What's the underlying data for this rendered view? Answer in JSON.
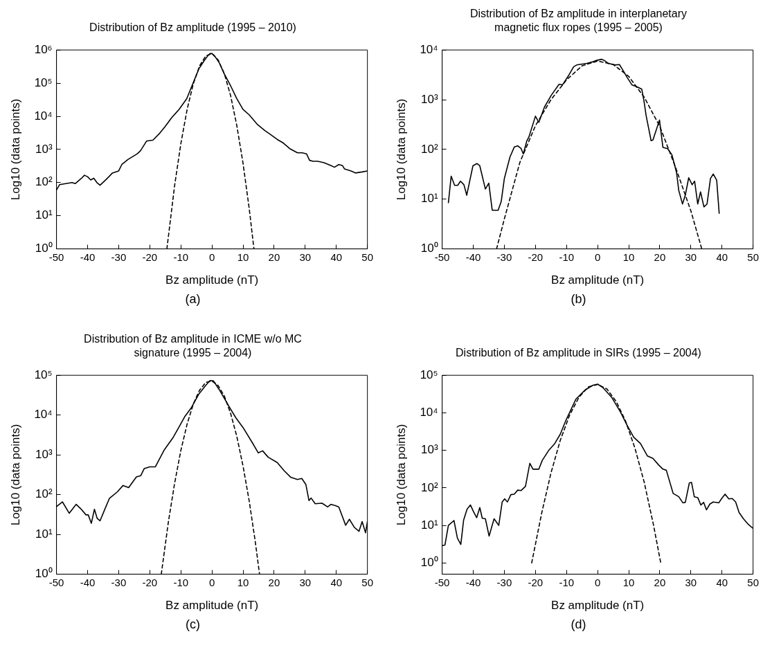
{
  "chart_data": [
    {
      "type": "line",
      "title": "Distribution of Bz amplitude (1995 – 2010)",
      "xlabel": "Bz amplitude (nT)",
      "ylabel": "Log10 (data points)",
      "annotations": [
        "(a)"
      ],
      "log": "y",
      "grid": false,
      "legend": false,
      "xlim": [
        -50,
        50
      ],
      "xticks": [
        -50,
        -40,
        -30,
        -20,
        -10,
        0,
        10,
        20,
        30,
        40,
        50
      ],
      "ylim": [
        1,
        1000000
      ],
      "yticks": [
        {
          "value": 1,
          "label": "10⁰"
        },
        {
          "value": 10,
          "label": "10¹"
        },
        {
          "value": 100,
          "label": "10²"
        },
        {
          "value": 1000,
          "label": "10³"
        },
        {
          "value": 10000,
          "label": "10⁴"
        },
        {
          "value": 100000,
          "label": "10⁵"
        },
        {
          "value": 1000000,
          "label": "10⁶"
        }
      ],
      "series": [
        {
          "color": "#000000",
          "line_style": "solid",
          "x": [
            -50,
            -49,
            -47,
            -45,
            -44,
            -42,
            -41,
            -40,
            -39,
            -38,
            -37,
            -36,
            -34,
            -32,
            -30,
            -29,
            -27,
            -24,
            -23,
            -21,
            -19,
            -17,
            -15,
            -13,
            -10.6,
            -8.1,
            -6.3,
            -4.2,
            -2.4,
            -1.3,
            -0.6,
            0,
            0.9,
            2.3,
            4,
            6,
            8,
            10,
            12,
            14.5,
            17,
            19,
            21,
            23,
            25,
            27.5,
            29,
            30.4,
            31.4,
            32.5,
            34,
            36,
            38.3,
            39.4,
            40.8,
            42,
            42.6,
            44.7,
            46.2,
            48.3,
            50
          ],
          "values": [
            60,
            87,
            93,
            100,
            93,
            134,
            167,
            150,
            120,
            135,
            100,
            83,
            125,
            195,
            225,
            350,
            500,
            740,
            910,
            1800,
            1900,
            2950,
            5000,
            9000,
            16000,
            34000,
            89000,
            270000,
            490000,
            675000,
            780000,
            780000,
            650000,
            420000,
            186000,
            83000,
            34000,
            16000,
            11000,
            5800,
            3700,
            2750,
            2000,
            1550,
            1060,
            790,
            790,
            740,
            470,
            440,
            440,
            400,
            325,
            290,
            350,
            325,
            260,
            225,
            195,
            210,
            225
          ]
        },
        {
          "color": "#000000",
          "line_style": "dashed",
          "x": [
            -14.5,
            -12,
            -10,
            -8,
            -6,
            -4,
            -2,
            0,
            2,
            4,
            6,
            8,
            10,
            12,
            13.5
          ],
          "values": [
            1,
            83,
            1500,
            16000,
            95000,
            330000,
            660000,
            780000,
            500000,
            190000,
            42000,
            5200,
            380,
            16,
            1
          ]
        }
      ]
    },
    {
      "type": "line",
      "title": "Distribution of Bz amplitude in interplanetary magnetic flux ropes (1995 – 2005)",
      "xlabel": "Bz amplitude (nT)",
      "ylabel": "Log10 (data points)",
      "annotations": [
        "(b)"
      ],
      "log": "y",
      "grid": false,
      "legend": false,
      "xlim": [
        -50,
        50
      ],
      "xticks": [
        -50,
        -40,
        -30,
        -20,
        -10,
        0,
        10,
        20,
        30,
        40,
        50
      ],
      "ylim": [
        1,
        10000
      ],
      "yticks": [
        {
          "value": 1,
          "label": "10⁰"
        },
        {
          "value": 10,
          "label": "10¹"
        },
        {
          "value": 100,
          "label": "10²"
        },
        {
          "value": 1000,
          "label": "10³"
        },
        {
          "value": 10000,
          "label": "10⁴"
        }
      ],
      "series": [
        {
          "color": "#000000",
          "line_style": "solid",
          "x": [
            -48,
            -47.1,
            -46,
            -45,
            -44.1,
            -43,
            -42.1,
            -40.1,
            -38.8,
            -37.9,
            -36.1,
            -35,
            -33.9,
            -32,
            -31,
            -30,
            -28.2,
            -26.8,
            -25.7,
            -24.6,
            -23.9,
            -22.8,
            -22.1,
            -20,
            -18.9,
            -17.1,
            -14.9,
            -12.4,
            -11.3,
            -9.5,
            -7.7,
            -6.7,
            -4.5,
            -3.4,
            -1.6,
            -0.2,
            1.3,
            2.3,
            3.4,
            5.6,
            7,
            8.1,
            9.5,
            11,
            12.8,
            14.2,
            14.9,
            15.6,
            17.2,
            17.8,
            19.9,
            21,
            22.5,
            23.9,
            25.4,
            26.1,
            27.3,
            28.2,
            29.3,
            30.4,
            31.2,
            32.2,
            33.1,
            34.2,
            35.2,
            36.3,
            37.2,
            38.3,
            39.1
          ],
          "values": [
            8.5,
            29,
            19,
            19,
            23,
            19.5,
            12,
            47,
            52,
            47,
            16,
            21,
            6,
            6,
            9,
            26,
            70,
            112,
            118,
            104,
            81,
            147,
            178,
            466,
            350,
            710,
            1230,
            2040,
            1990,
            2950,
            4600,
            5000,
            5250,
            5400,
            5770,
            6200,
            6500,
            6060,
            5400,
            5000,
            5100,
            3950,
            2800,
            2000,
            1800,
            1630,
            950,
            480,
            150,
            155,
            390,
            110,
            104,
            78,
            34,
            15,
            8,
            12,
            27,
            19.5,
            23,
            8,
            14,
            7,
            8,
            26,
            32,
            24,
            5.2
          ]
        },
        {
          "color": "#000000",
          "line_style": "dashed",
          "x": [
            -32.5,
            -30,
            -25,
            -20,
            -15,
            -10,
            -5,
            0,
            5,
            10,
            15,
            20,
            25,
            30,
            33.5
          ],
          "values": [
            1,
            4,
            55,
            300,
            1000,
            2500,
            4800,
            6000,
            5100,
            2950,
            1120,
            290,
            45,
            5.8,
            1
          ]
        }
      ]
    },
    {
      "type": "line",
      "title": "Distribution of Bz amplitude in ICME w/o MC signature (1995 – 2004)",
      "xlabel": "Bz amplitude (nT)",
      "ylabel": "Log10 (data points)",
      "annotations": [
        "(c)"
      ],
      "log": "y",
      "grid": false,
      "legend": false,
      "xlim": [
        -50,
        50
      ],
      "xticks": [
        -50,
        -40,
        -30,
        -20,
        -10,
        0,
        10,
        20,
        30,
        40,
        50
      ],
      "ylim": [
        1,
        100000
      ],
      "yticks": [
        {
          "value": 1,
          "label": "10⁰"
        },
        {
          "value": 10,
          "label": "10¹"
        },
        {
          "value": 100,
          "label": "10²"
        },
        {
          "value": 1000,
          "label": "10³"
        },
        {
          "value": 10000,
          "label": "10⁴"
        },
        {
          "value": 100000,
          "label": "10⁵"
        }
      ],
      "series": [
        {
          "color": "#000000",
          "line_style": "solid",
          "x": [
            -50,
            -48.1,
            -45.9,
            -43.7,
            -42.3,
            -40.5,
            -39.8,
            -38.8,
            -37.8,
            -36.9,
            -36,
            -34.4,
            -33,
            -30.4,
            -28.6,
            -26.8,
            -24.3,
            -22.9,
            -21.8,
            -20,
            -18.2,
            -15.3,
            -12.4,
            -8.8,
            -6.7,
            -4.2,
            -2,
            -0.6,
            0.5,
            2.3,
            5.9,
            7.7,
            10.2,
            13.1,
            14.9,
            16.3,
            18.1,
            21,
            23.2,
            25.3,
            27.5,
            28.9,
            30.2,
            31.2,
            31.9,
            33.2,
            35.4,
            37.2,
            38.3,
            39.7,
            40.8,
            43,
            44.2,
            45.8,
            47.3,
            48.3,
            49.4,
            50
          ],
          "values": [
            50,
            66,
            34,
            57,
            45,
            31,
            31,
            19,
            43,
            25,
            22,
            44,
            80,
            118,
            170,
            150,
            280,
            300,
            450,
            500,
            500,
            1350,
            2800,
            9000,
            15000,
            34000,
            56000,
            74000,
            72000,
            44000,
            14500,
            8500,
            4600,
            1950,
            1120,
            1260,
            870,
            640,
            400,
            275,
            240,
            255,
            180,
            71,
            82,
            59,
            61,
            49,
            57,
            53,
            49,
            17,
            24,
            15,
            12,
            21,
            11,
            21
          ]
        },
        {
          "color": "#000000",
          "line_style": "dashed",
          "x": [
            -16.3,
            -14,
            -12,
            -10,
            -8,
            -6,
            -4,
            -2,
            0,
            2,
            4,
            6,
            8,
            10,
            12,
            14,
            15.3
          ],
          "values": [
            1,
            21,
            195,
            1300,
            5900,
            19000,
            42000,
            66000,
            72000,
            55000,
            30000,
            11000,
            2900,
            520,
            68,
            6,
            1
          ]
        }
      ]
    },
    {
      "type": "line",
      "title": "Distribution of Bz amplitude in SIRs (1995 – 2004)",
      "xlabel": "Bz amplitude (nT)",
      "ylabel": "Log10 (data points)",
      "annotations": [
        "(d)"
      ],
      "log": "y",
      "grid": false,
      "legend": false,
      "xlim": [
        -50,
        50
      ],
      "xticks": [
        -50,
        -40,
        -30,
        -20,
        -10,
        0,
        10,
        20,
        30,
        40,
        50
      ],
      "ylim": [
        0.5,
        100000
      ],
      "yticks": [
        {
          "value": 1,
          "label": "10⁰"
        },
        {
          "value": 10,
          "label": "10¹"
        },
        {
          "value": 100,
          "label": "10²"
        },
        {
          "value": 1000,
          "label": "10³"
        },
        {
          "value": 10000,
          "label": "10⁴"
        },
        {
          "value": 100000,
          "label": "10⁵"
        }
      ],
      "series": [
        {
          "color": "#000000",
          "line_style": "solid",
          "x": [
            -50,
            -49.1,
            -48,
            -46.2,
            -45.1,
            -44,
            -43.1,
            -42,
            -40.9,
            -39.9,
            -38.9,
            -37.9,
            -37.1,
            -36.1,
            -34.9,
            -33.3,
            -31.8,
            -30.7,
            -29.9,
            -29,
            -27.9,
            -26.8,
            -25.7,
            -24.6,
            -23.2,
            -21.8,
            -20.8,
            -18.9,
            -17.8,
            -15.6,
            -13.8,
            -12,
            -10.2,
            -7,
            -4.1,
            -1.6,
            0,
            1.6,
            4.5,
            7.3,
            9.5,
            11.6,
            13.8,
            16,
            17.8,
            19.6,
            21,
            22.1,
            24.3,
            26.1,
            27.4,
            28.2,
            29.5,
            30.2,
            31.1,
            32.2,
            33.2,
            34.1,
            35,
            36.1,
            37.2,
            39,
            39.9,
            41,
            42.2,
            43.3,
            44.4,
            45.5,
            46.9,
            48.3,
            50
          ],
          "values": [
            2.9,
            3,
            10,
            13.5,
            4.6,
            3.1,
            13.8,
            27,
            35,
            23,
            16,
            30,
            15.5,
            15,
            5.2,
            15,
            10,
            42,
            51,
            42,
            66,
            68,
            87,
            85,
            110,
            450,
            315,
            315,
            540,
            1030,
            1510,
            2700,
            6300,
            23000,
            40000,
            54000,
            58000,
            48000,
            26000,
            10700,
            4600,
            2240,
            1510,
            710,
            610,
            410,
            315,
            295,
            71,
            58,
            40,
            41,
            135,
            140,
            58,
            55,
            35,
            41,
            26,
            37,
            42,
            40,
            52,
            68,
            51,
            52,
            42,
            22,
            15,
            11,
            8.3
          ]
        },
        {
          "color": "#000000",
          "line_style": "dashed",
          "x": [
            -21.2,
            -18,
            -15,
            -12,
            -9,
            -6,
            -3,
            0,
            3,
            6,
            9,
            12,
            15,
            18,
            20.3
          ],
          "values": [
            1,
            21,
            250,
            1860,
            8700,
            26000,
            49000,
            57000,
            43000,
            20000,
            6000,
            1150,
            140,
            10,
            1
          ]
        }
      ]
    }
  ]
}
